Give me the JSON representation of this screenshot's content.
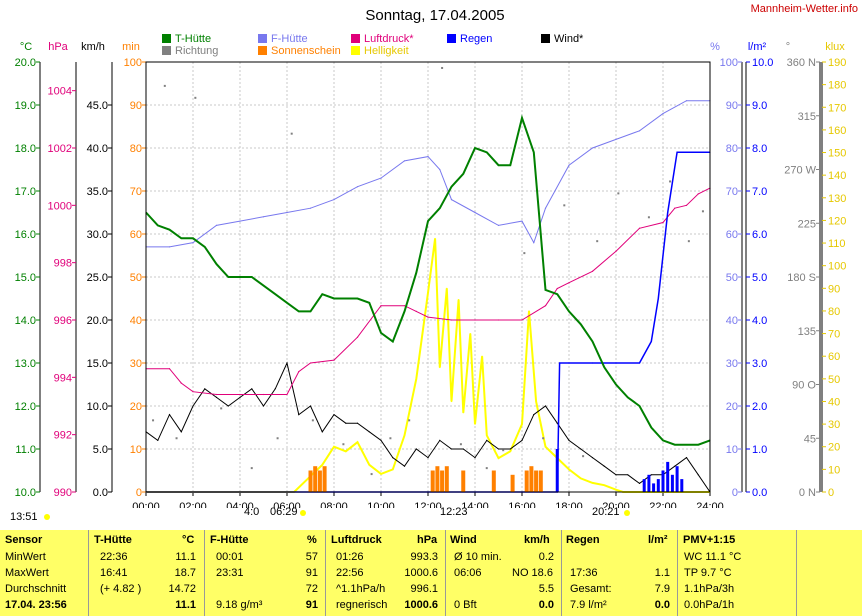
{
  "header": {
    "title": "Sonntag, 17.04.2005",
    "site": "Mannheim-Wetter.info"
  },
  "axes": {
    "unit_headers": [
      "°C",
      "hPa",
      "km/h",
      "min",
      "%",
      "l/m²",
      "°",
      "klux"
    ],
    "temp_ticks": [
      "10.0",
      "11.0",
      "12.0",
      "13.0",
      "14.0",
      "15.0",
      "16.0",
      "17.0",
      "18.0",
      "19.0",
      "20.0"
    ],
    "hpa_ticks": [
      "990",
      "992",
      "994",
      "996",
      "998",
      "1000",
      "1002",
      "1004"
    ],
    "wind_ticks": [
      "0.0",
      "5.0",
      "10.0",
      "15.0",
      "20.0",
      "25.0",
      "30.0",
      "35.0",
      "40.0",
      "45.0"
    ],
    "min_ticks": [
      "0",
      "10",
      "20",
      "30",
      "40",
      "50",
      "60",
      "70",
      "80",
      "90",
      "100"
    ],
    "pct_ticks": [
      "0",
      "10",
      "20",
      "30",
      "40",
      "50",
      "60",
      "70",
      "80",
      "90",
      "100"
    ],
    "rain_ticks": [
      "0.0",
      "1.0",
      "2.0",
      "3.0",
      "4.0",
      "5.0",
      "6.0",
      "7.0",
      "8.0",
      "9.0",
      "10.0"
    ],
    "dir_ticks": [
      "0 N",
      "45",
      "90 O",
      "135",
      "180 S",
      "225",
      "270 W",
      "315",
      "360 N"
    ],
    "klux_ticks": [
      "0",
      "10",
      "20",
      "30",
      "40",
      "50",
      "60",
      "70",
      "80",
      "90",
      "100",
      "110",
      "120",
      "130",
      "140",
      "150",
      "160",
      "170",
      "180",
      "190"
    ],
    "time_ticks": [
      "00:00",
      "02:00",
      "04:00",
      "06:00",
      "08:00",
      "10:00",
      "12:00",
      "14:00",
      "16:00",
      "18:00",
      "20:00",
      "22:00",
      "24:00"
    ]
  },
  "legend": {
    "t_huette": "T-Hütte",
    "f_huette": "F-Hütte",
    "luftdruck": "Luftdruck*",
    "regen": "Regen",
    "wind": "Wind*",
    "richtung": "Richtung",
    "sonnenschein": "Sonnenschein",
    "helligkeit": "Helligkeit"
  },
  "colors": {
    "temp": "#008000",
    "humidity": "#7878ee",
    "pressure": "#e0007a",
    "rain": "#0000ff",
    "wind": "#000000",
    "direction": "#808080",
    "sunshine": "#ff8000",
    "brightness": "#ffff00",
    "table_bg": "#ffff66"
  },
  "timebar": {
    "now": "13:51",
    "dawn": "4:0",
    "sunrise": "06:29",
    "noon": "12:23",
    "sunset": "20:21"
  },
  "chart_data": {
    "type": "line",
    "xlabel": "",
    "xlim": [
      0,
      24
    ],
    "series": [
      {
        "name": "T-Hütte",
        "unit": "°C",
        "ylim": [
          10,
          20
        ],
        "x": [
          0,
          0.5,
          1,
          1.5,
          2,
          2.5,
          3,
          3.5,
          4,
          4.5,
          5,
          5.5,
          6,
          6.5,
          7,
          7.5,
          8,
          8.5,
          9,
          9.5,
          10,
          10.5,
          11,
          11.5,
          12,
          12.5,
          13,
          13.5,
          14,
          14.5,
          15,
          15.5,
          16,
          16.5,
          17,
          17.5,
          18,
          18.5,
          19,
          19.5,
          20,
          20.5,
          21,
          21.5,
          22,
          22.5,
          23,
          23.5,
          24
        ],
        "y": [
          16.5,
          16.2,
          16.1,
          15.9,
          15.9,
          15.7,
          15.3,
          15.0,
          15.0,
          15.0,
          14.8,
          14.6,
          14.4,
          14.2,
          14.2,
          14.6,
          14.5,
          14.5,
          14.5,
          14.4,
          13.7,
          13.5,
          14.2,
          15.1,
          16.3,
          16.6,
          17.1,
          17.4,
          18.0,
          17.9,
          17.6,
          17.6,
          18.7,
          17.9,
          14.7,
          14.6,
          14.2,
          13.9,
          13.5,
          12.9,
          12.5,
          12.2,
          12.0,
          11.5,
          11.2,
          11.1,
          11.1,
          11.1,
          11.2
        ]
      },
      {
        "name": "F-Hütte",
        "unit": "%",
        "ylim": [
          0,
          100
        ],
        "x": [
          0,
          1,
          2,
          3,
          4,
          5,
          6,
          7,
          8,
          9,
          10,
          11,
          12,
          12.5,
          13,
          14,
          15,
          16,
          16.5,
          17,
          18,
          19,
          20,
          21,
          22,
          23,
          24
        ],
        "y": [
          57,
          57,
          58,
          62,
          63,
          64,
          65,
          66,
          68,
          71,
          73,
          77,
          78,
          75,
          68,
          65,
          62,
          63,
          58,
          66,
          76,
          80,
          82,
          84,
          88,
          91,
          91
        ]
      },
      {
        "name": "Luftdruck*",
        "unit": "hPa",
        "ylim": [
          990,
          1005
        ],
        "x": [
          0,
          1,
          1.5,
          2,
          3,
          4,
          5,
          6,
          6.5,
          7,
          8,
          9,
          10,
          11,
          11.5,
          12,
          13,
          14,
          15,
          16,
          17,
          17.5,
          18,
          19,
          20,
          21,
          22,
          22.5,
          23,
          23.5,
          24
        ],
        "y": [
          994.3,
          994.3,
          993.8,
          993.5,
          993.4,
          993.4,
          993.4,
          993.4,
          994.2,
          994.5,
          994.6,
          995.4,
          996.5,
          996.5,
          996.3,
          996.1,
          996.0,
          996.0,
          996.0,
          996.0,
          996.5,
          997.1,
          997.3,
          997.7,
          998.4,
          999.2,
          999.4,
          999.9,
          1000.0,
          1000.4,
          1000.6
        ]
      },
      {
        "name": "Wind*",
        "unit": "km/h",
        "ylim": [
          0,
          50
        ],
        "x": [
          0,
          0.5,
          1,
          1.5,
          2,
          2.5,
          3,
          3.5,
          4,
          4.5,
          5,
          5.5,
          6,
          6.5,
          7,
          7.5,
          8,
          8.5,
          9,
          9.5,
          10,
          10.5,
          11,
          11.5,
          12,
          12.5,
          13,
          13.5,
          14,
          14.5,
          15,
          15.5,
          16,
          16.5,
          17,
          17.5,
          18,
          18.5,
          19,
          19.5,
          20,
          20.5,
          21,
          21.5,
          22,
          22.5,
          23,
          23.5,
          24
        ],
        "y": [
          7,
          6,
          9,
          7,
          10,
          12,
          11,
          10,
          11,
          12,
          10,
          12,
          15,
          9,
          10,
          7,
          9,
          8,
          8,
          7,
          6,
          4,
          3,
          5,
          4,
          6,
          5,
          5,
          4,
          6,
          5,
          5,
          6,
          9,
          10,
          8,
          6,
          5,
          4,
          3,
          2,
          2,
          1,
          2,
          2,
          3,
          4,
          2,
          0
        ]
      },
      {
        "name": "Helligkeit",
        "unit": "klux",
        "ylim": [
          0,
          190
        ],
        "x": [
          0,
          6.3,
          7,
          7.5,
          8,
          8.5,
          9,
          9.5,
          10,
          10.5,
          11,
          11.5,
          12,
          12.3,
          12.5,
          12.8,
          13,
          13.3,
          13.5,
          13.8,
          14,
          14.3,
          14.5,
          15,
          15.5,
          16,
          16.3,
          16.6,
          17,
          17.5,
          18,
          18.5,
          19,
          19.5,
          20,
          20.3,
          24
        ],
        "y": [
          0,
          0,
          7,
          12,
          20,
          18,
          22,
          12,
          8,
          10,
          25,
          50,
          88,
          112,
          55,
          90,
          40,
          85,
          35,
          70,
          30,
          60,
          25,
          15,
          18,
          30,
          80,
          40,
          20,
          15,
          10,
          6,
          4,
          3,
          1,
          0,
          0
        ]
      },
      {
        "name": "Regen",
        "unit": "l/m²",
        "ylim": [
          0,
          10
        ],
        "x": [
          0,
          17.5,
          17.6,
          18,
          19,
          20,
          21,
          21.5,
          21.8,
          22,
          22.2,
          22.4,
          22.6,
          23,
          24
        ],
        "y": [
          0,
          0,
          3,
          3,
          3,
          3,
          3,
          3.5,
          4.5,
          5.5,
          6.5,
          7.2,
          7.9,
          7.9,
          7.9
        ]
      }
    ],
    "sunshine_min": {
      "unit": "min",
      "ylim": [
        0,
        100
      ],
      "x": [
        7,
        7.2,
        7.4,
        7.6,
        12.2,
        12.4,
        12.6,
        12.8,
        13.5,
        14.8,
        15.6,
        16.2,
        16.4,
        16.6,
        16.8
      ],
      "y": [
        5,
        6,
        5,
        6,
        5,
        6,
        5,
        6,
        5,
        5,
        4,
        5,
        6,
        5,
        5
      ]
    },
    "rain_bars": {
      "unit": "l/m²",
      "x": [
        17.5,
        21.2,
        21.4,
        21.6,
        21.8,
        22,
        22.2,
        22.4,
        22.6,
        22.8
      ],
      "y": [
        1.0,
        0.3,
        0.4,
        0.2,
        0.3,
        0.5,
        0.7,
        0.4,
        0.6,
        0.3
      ]
    },
    "direction_points": {
      "unit": "°",
      "x": [
        0.3,
        0.8,
        1.3,
        2.1,
        3.2,
        4.5,
        5.6,
        6.2,
        7.1,
        8.4,
        9.6,
        10.4,
        11.2,
        12.6,
        13.4,
        14.5,
        15.2,
        16.1,
        16.9,
        17.8,
        18.6,
        19.2,
        20.1,
        21.4,
        22.3,
        23.1,
        23.7
      ],
      "y": [
        60,
        340,
        45,
        330,
        70,
        20,
        45,
        300,
        60,
        40,
        15,
        45,
        60,
        355,
        40,
        20,
        35,
        200,
        45,
        240,
        30,
        210,
        250,
        230,
        260,
        210,
        235
      ]
    }
  },
  "table": {
    "headers": {
      "sensor": "Sensor",
      "t": "T-Hütte",
      "t_u": "°C",
      "f": "F-Hütte",
      "f_u": "%",
      "p": "Luftdruck",
      "p_u": "hPa",
      "w": "Wind",
      "w_u": "km/h",
      "r": "Regen",
      "r_u": "l/m²",
      "pmv": "PMV+1:15"
    },
    "rows": [
      {
        "label": "MinWert",
        "t_time": "22:36",
        "t_val": "11.1",
        "f_time": "00:01",
        "f_val": "57",
        "p_time": "01:26",
        "p_val": "993.3",
        "w_label": "Ø 10 min.",
        "w_val": "0.2",
        "r_label": "",
        "r_val": "",
        "pmv": "WC 11.1 °C"
      },
      {
        "label": "MaxWert",
        "t_time": "16:41",
        "t_val": "18.7",
        "f_time": "23:31",
        "f_val": "91",
        "p_time": "22:56",
        "p_val": "1000.6",
        "w_label": "06:06",
        "w_dir": "NO 18.6",
        "r_label": "17:36",
        "r_val": "1.1",
        "pmv": "TP 9.7 °C"
      },
      {
        "label": "Durchschnitt",
        "t_time": "(+ 4.82 )",
        "t_val": "14.72",
        "f_time": "",
        "f_val": "72",
        "p_time": "^1.1hPa/h",
        "p_val": "996.1",
        "w_label": "",
        "w_val": "5.5",
        "r_label": "Gesamt:",
        "r_val": "7.9",
        "pmv": "1.1hPa/3h"
      },
      {
        "label": "17.04. 23:56",
        "t_time": "",
        "t_val": "11.1",
        "f_time": "9.18 g/m³",
        "f_val": "91",
        "p_time": "regnerisch",
        "p_val": "1000.6",
        "w_label": "0 Bft",
        "w_val": "0.0",
        "r_label": "7.9 l/m²",
        "r_val": "0.0",
        "pmv": "0.0hPa/1h"
      }
    ]
  }
}
